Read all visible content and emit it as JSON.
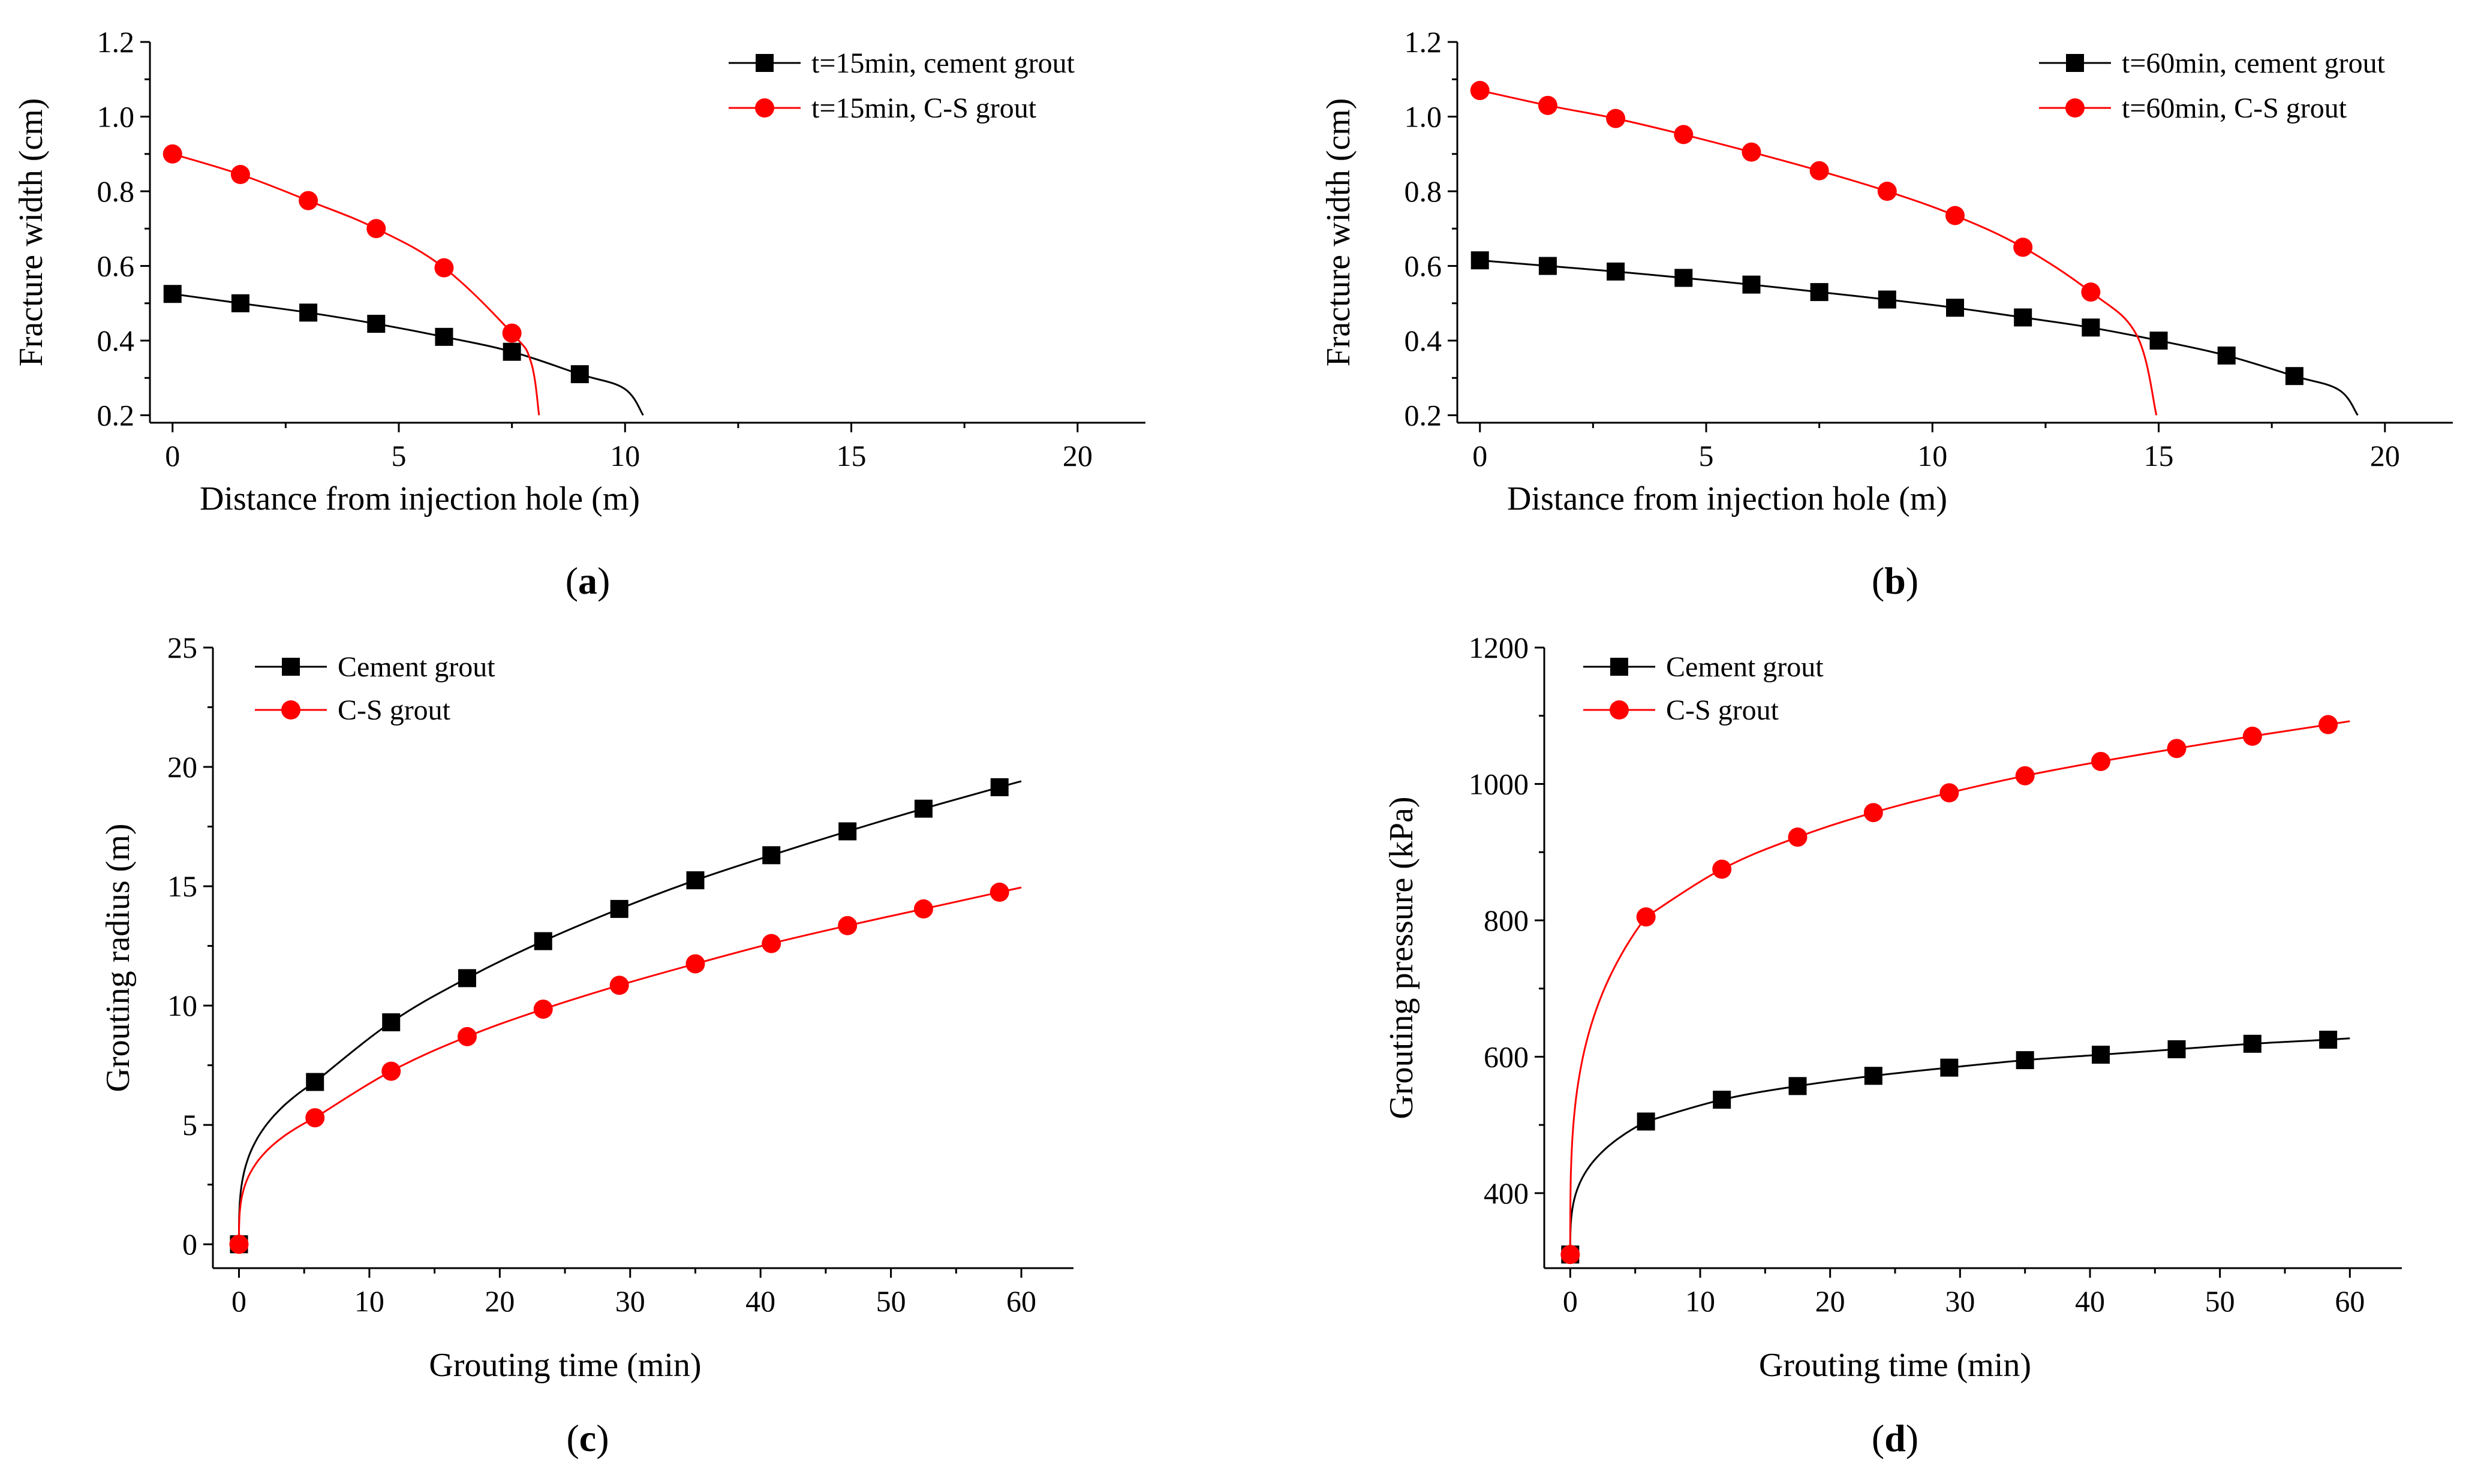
{
  "colors": {
    "cement": "#000000",
    "cs": "#ff0000"
  },
  "chart_data": [
    {
      "id": "a",
      "type": "line",
      "panel_label": "a",
      "xlabel": "Distance from injection hole (m)",
      "ylabel": "Fracture width (cm)",
      "xlim": [
        -0.5,
        21.5
      ],
      "ylim": [
        0.18,
        1.2
      ],
      "xticks": [
        0,
        5,
        10,
        15,
        20
      ],
      "yticks": [
        0.2,
        0.4,
        0.6,
        0.8,
        1.0,
        1.2
      ],
      "ytick_labels": [
        "0.2",
        "0.4",
        "0.6",
        "0.8",
        "1.0",
        "1.2"
      ],
      "legend_position": "top-right",
      "series": [
        {
          "name": "t=15min, cement grout",
          "marker": "square",
          "color_key": "cement",
          "x": [
            0,
            1.5,
            3,
            4.5,
            6,
            7.5,
            9
          ],
          "y": [
            0.525,
            0.5,
            0.475,
            0.445,
            0.41,
            0.37,
            0.31
          ],
          "curve_end": [
            10.4,
            0.2
          ]
        },
        {
          "name": "t=15min, C-S grout",
          "marker": "circle",
          "color_key": "cs",
          "x": [
            0,
            1.5,
            3,
            4.5,
            6,
            7.5
          ],
          "y": [
            0.9,
            0.845,
            0.775,
            0.7,
            0.595,
            0.42
          ],
          "curve_end": [
            8.1,
            0.2
          ]
        }
      ]
    },
    {
      "id": "b",
      "type": "line",
      "panel_label": "b",
      "xlabel": "Distance from injection hole (m)",
      "ylabel": "Fracture width (cm)",
      "xlim": [
        -0.5,
        21.5
      ],
      "ylim": [
        0.18,
        1.2
      ],
      "xticks": [
        0,
        5,
        10,
        15,
        20
      ],
      "yticks": [
        0.2,
        0.4,
        0.6,
        0.8,
        1.0,
        1.2
      ],
      "ytick_labels": [
        "0.2",
        "0.4",
        "0.6",
        "0.8",
        "1.0",
        "1.2"
      ],
      "legend_position": "top-right",
      "series": [
        {
          "name": "t=60min, cement grout",
          "marker": "square",
          "color_key": "cement",
          "x": [
            0,
            1.5,
            3,
            4.5,
            6,
            7.5,
            9,
            10.5,
            12,
            13.5,
            15,
            16.5,
            18
          ],
          "y": [
            0.615,
            0.6,
            0.585,
            0.568,
            0.55,
            0.53,
            0.51,
            0.488,
            0.462,
            0.435,
            0.4,
            0.36,
            0.305
          ],
          "curve_end": [
            19.4,
            0.2
          ]
        },
        {
          "name": "t=60min, C-S grout",
          "marker": "circle",
          "color_key": "cs",
          "x": [
            0,
            1.5,
            3,
            4.5,
            6,
            7.5,
            9,
            10.5,
            12,
            13.5
          ],
          "y": [
            1.07,
            1.03,
            0.995,
            0.952,
            0.905,
            0.855,
            0.8,
            0.735,
            0.65,
            0.53
          ],
          "curve_end": [
            14.95,
            0.2
          ]
        }
      ]
    },
    {
      "id": "c",
      "type": "line",
      "panel_label": "c",
      "xlabel": "Grouting time (min)",
      "ylabel": "Grouting radius (m)",
      "xlim": [
        -2,
        64
      ],
      "ylim": [
        -1,
        25
      ],
      "xticks": [
        0,
        10,
        20,
        30,
        40,
        50,
        60
      ],
      "yticks": [
        0,
        5,
        10,
        15,
        20,
        25
      ],
      "ytick_labels": [
        "0",
        "5",
        "10",
        "15",
        "20",
        "25"
      ],
      "legend_position": "top-left",
      "series": [
        {
          "name": "Cement grout",
          "marker": "square",
          "color_key": "cement",
          "x": [
            0,
            5.83,
            11.67,
            17.5,
            23.33,
            29.17,
            35,
            40.83,
            46.67,
            52.5,
            58.33
          ],
          "y": [
            0,
            6.8,
            9.3,
            11.15,
            12.7,
            14.05,
            15.25,
            16.3,
            17.3,
            18.25,
            19.15
          ],
          "curve_end": [
            60,
            19.4
          ]
        },
        {
          "name": "C-S grout",
          "marker": "circle",
          "color_key": "cs",
          "x": [
            0,
            5.83,
            11.67,
            17.5,
            23.33,
            29.17,
            35,
            40.83,
            46.67,
            52.5,
            58.33
          ],
          "y": [
            0,
            5.3,
            7.25,
            8.7,
            9.85,
            10.85,
            11.75,
            12.6,
            13.35,
            14.05,
            14.75
          ],
          "curve_end": [
            60,
            14.95
          ]
        }
      ]
    },
    {
      "id": "d",
      "type": "line",
      "panel_label": "d",
      "xlabel": "Grouting time (min)",
      "ylabel": "Grouting pressure (kPa)",
      "xlim": [
        -2,
        64
      ],
      "ylim": [
        290,
        1200
      ],
      "xticks": [
        0,
        10,
        20,
        30,
        40,
        50,
        60
      ],
      "yticks": [
        400,
        600,
        800,
        1000,
        1200
      ],
      "ytick_labels": [
        "400",
        "600",
        "800",
        "1000",
        "1200"
      ],
      "legend_position": "top-left",
      "series": [
        {
          "name": "Cement grout",
          "marker": "square",
          "color_key": "cement",
          "x": [
            0,
            5.83,
            11.67,
            17.5,
            23.33,
            29.17,
            35,
            40.83,
            46.67,
            52.5,
            58.33
          ],
          "y": [
            310,
            505,
            537,
            557,
            572,
            584,
            595,
            603,
            611,
            619,
            625
          ],
          "curve_end": [
            60,
            627
          ]
        },
        {
          "name": "C-S grout",
          "marker": "circle",
          "color_key": "cs",
          "x": [
            0,
            5.83,
            11.67,
            17.5,
            23.33,
            29.17,
            35,
            40.83,
            46.67,
            52.5,
            58.33
          ],
          "y": [
            310,
            805,
            875,
            922,
            958,
            987,
            1012,
            1033,
            1052,
            1070,
            1087
          ],
          "curve_end": [
            60,
            1092
          ]
        }
      ]
    }
  ]
}
